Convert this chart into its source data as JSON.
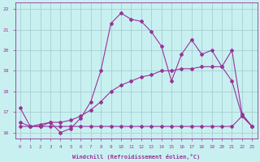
{
  "xlabel": "Windchill (Refroidissement éolien,°C)",
  "bg_color": "#c8f0f0",
  "grid_color": "#a0c8d0",
  "line_color": "#993399",
  "xlim": [
    -0.5,
    23.5
  ],
  "ylim": [
    15.7,
    22.3
  ],
  "yticks": [
    16,
    17,
    18,
    19,
    20,
    21,
    22
  ],
  "xticks": [
    0,
    1,
    2,
    3,
    4,
    5,
    6,
    7,
    8,
    9,
    10,
    11,
    12,
    13,
    14,
    15,
    16,
    17,
    18,
    19,
    20,
    21,
    22,
    23
  ],
  "line1_x": [
    0,
    1,
    2,
    3,
    4,
    5,
    6,
    7,
    8,
    9,
    10,
    11,
    12,
    13,
    14,
    15,
    16,
    17,
    18,
    19,
    20,
    21,
    22,
    23
  ],
  "line1_y": [
    17.2,
    16.3,
    16.3,
    16.5,
    16.0,
    16.2,
    16.7,
    17.5,
    19.0,
    21.3,
    21.8,
    21.5,
    21.4,
    20.9,
    20.2,
    18.5,
    19.8,
    20.5,
    19.8,
    20.0,
    19.2,
    20.0,
    16.9,
    16.3
  ],
  "line2_x": [
    0,
    1,
    2,
    3,
    4,
    5,
    6,
    7,
    8,
    9,
    10,
    11,
    12,
    13,
    14,
    15,
    16,
    17,
    18,
    19,
    20,
    21,
    22,
    23
  ],
  "line2_y": [
    16.3,
    16.3,
    16.3,
    16.3,
    16.3,
    16.3,
    16.3,
    16.3,
    16.3,
    16.3,
    16.3,
    16.3,
    16.3,
    16.3,
    16.3,
    16.3,
    16.3,
    16.3,
    16.3,
    16.3,
    16.3,
    16.3,
    16.8,
    16.3
  ],
  "line3_x": [
    0,
    1,
    2,
    3,
    4,
    5,
    6,
    7,
    8,
    9,
    10,
    11,
    12,
    13,
    14,
    15,
    16,
    17,
    18,
    19,
    20,
    21,
    22,
    23
  ],
  "line3_y": [
    16.5,
    16.3,
    16.4,
    16.5,
    16.5,
    16.6,
    16.8,
    17.1,
    17.5,
    18.0,
    18.3,
    18.5,
    18.7,
    18.8,
    19.0,
    19.0,
    19.1,
    19.1,
    19.2,
    19.2,
    19.2,
    18.5,
    16.8,
    16.3
  ],
  "marker": "D",
  "markersize": 2.0,
  "linewidth": 0.8
}
